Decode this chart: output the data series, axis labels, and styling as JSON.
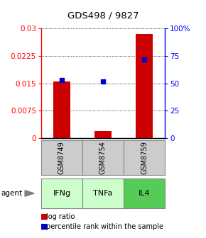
{
  "title": "GDS498 / 9827",
  "samples": [
    "GSM8749",
    "GSM8754",
    "GSM8759"
  ],
  "agents": [
    "IFNg",
    "TNFa",
    "IL4"
  ],
  "log_ratios": [
    0.0155,
    0.002,
    0.0285
  ],
  "percentile_ranks": [
    53,
    52,
    72
  ],
  "ylim_left": [
    0,
    0.03
  ],
  "ylim_right": [
    0,
    100
  ],
  "yticks_left": [
    0,
    0.0075,
    0.015,
    0.0225,
    0.03
  ],
  "ytick_labels_left": [
    "0",
    "0.0075",
    "0.015",
    "0.0225",
    "0.03"
  ],
  "yticks_right": [
    0,
    25,
    50,
    75,
    100
  ],
  "ytick_labels_right": [
    "0",
    "25",
    "50",
    "75",
    "100%"
  ],
  "bar_color": "#cc0000",
  "dot_color": "#0000cc",
  "bar_width": 0.4,
  "agent_colors": [
    "#ccffcc",
    "#ccffcc",
    "#55cc55"
  ],
  "gsm_bg_color": "#cccccc",
  "legend_bar_color": "#cc0000",
  "legend_dot_color": "#0000cc",
  "title_fontsize": 9.5,
  "tick_fontsize": 7.5,
  "table_fontsize": 7,
  "agent_fontsize": 8
}
